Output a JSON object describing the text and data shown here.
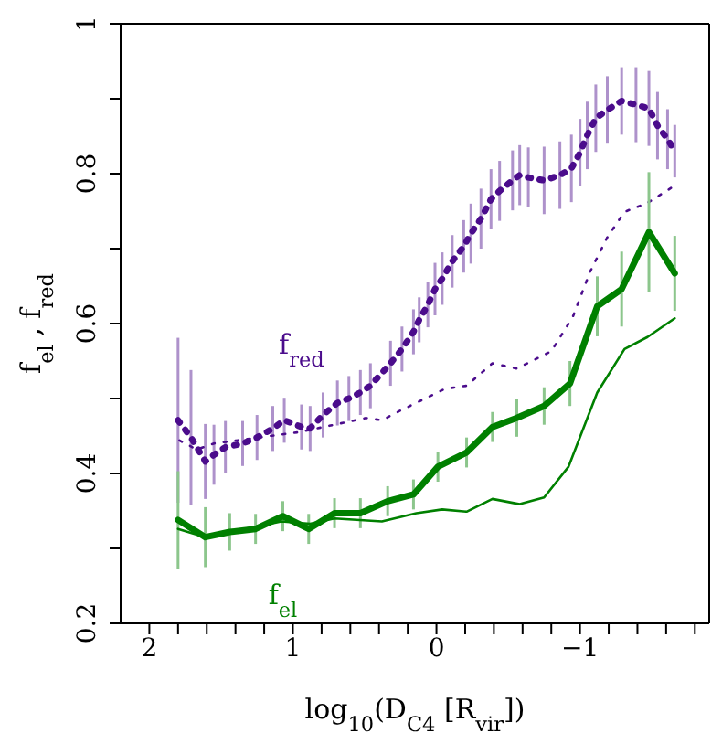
{
  "chart_data": {
    "type": "line",
    "xlabel": "log$_{10}$(D$_{C4}$ [R$_{vir}$])",
    "ylabel": "f$_{el}$ , f$_{red}$",
    "xlim": [
      2.2,
      -1.9
    ],
    "xticks": [
      2,
      {
        "value": 1.8,
        "label": null
      },
      {
        "value": 1.6,
        "label": null
      },
      {
        "value": 1.4,
        "label": null
      },
      {
        "value": 1.2,
        "label": null
      },
      1,
      {
        "value": 0.8,
        "label": null
      },
      {
        "value": 0.6,
        "label": null
      },
      {
        "value": 0.4,
        "label": null
      },
      {
        "value": 0.2,
        "label": null
      },
      0,
      {
        "value": -0.2,
        "label": null
      },
      {
        "value": -0.4,
        "label": null
      },
      {
        "value": -0.6,
        "label": null
      },
      {
        "value": -0.8,
        "label": null
      },
      {
        "value": -1,
        "label": "−1"
      },
      {
        "value": -1.2,
        "label": null
      },
      {
        "value": -1.4,
        "label": null
      },
      {
        "value": -1.6,
        "label": null
      },
      {
        "value": -1.8,
        "label": null
      }
    ],
    "ylim": [
      0.2,
      1
    ],
    "yticks": [
      0.2,
      {
        "value": 0.3,
        "label": null
      },
      0.4,
      {
        "value": 0.5,
        "label": null
      },
      0.6,
      {
        "value": 0.7,
        "label": null
      },
      0.8,
      {
        "value": 0.9,
        "label": null
      },
      1
    ],
    "grid": false,
    "legend": false,
    "series": [
      {
        "name": "f$_{red}$",
        "color": "#4b0c8c",
        "line_style": "dotted",
        "x": [
          1.8,
          1.71,
          1.61,
          1.55,
          1.47,
          1.35,
          1.25,
          1.14,
          1.06,
          0.94,
          0.88,
          0.79,
          0.69,
          0.61,
          0.53,
          0.46,
          0.32,
          0.24,
          0.16,
          0.12,
          0.06,
          0.01,
          -0.04,
          -0.11,
          -0.19,
          -0.24,
          -0.31,
          -0.38,
          -0.44,
          -0.53,
          -0.58,
          -0.64,
          -0.75,
          -0.86,
          -0.94,
          -1.0,
          -1.05,
          -1.11,
          -1.19,
          -1.29,
          -1.39,
          -1.48,
          -1.54,
          -1.61,
          -1.66
        ],
        "values": [
          0.471,
          0.448,
          0.416,
          0.425,
          0.435,
          0.44,
          0.448,
          0.46,
          0.471,
          0.462,
          0.46,
          0.478,
          0.494,
          0.5,
          0.508,
          0.517,
          0.547,
          0.566,
          0.589,
          0.605,
          0.625,
          0.646,
          0.66,
          0.683,
          0.703,
          0.72,
          0.74,
          0.766,
          0.777,
          0.791,
          0.798,
          0.795,
          0.791,
          0.798,
          0.807,
          0.828,
          0.851,
          0.874,
          0.885,
          0.897,
          0.892,
          0.887,
          0.864,
          0.846,
          0.83
        ],
        "errors": [
          0.11,
          0.09,
          0.05,
          0.04,
          0.035,
          0.03,
          0.03,
          0.03,
          0.03,
          0.03,
          0.03,
          0.03,
          0.03,
          0.03,
          0.03,
          0.03,
          0.03,
          0.03,
          0.03,
          0.03,
          0.03,
          0.035,
          0.035,
          0.035,
          0.035,
          0.04,
          0.04,
          0.04,
          0.04,
          0.04,
          0.04,
          0.04,
          0.045,
          0.045,
          0.045,
          0.045,
          0.045,
          0.045,
          0.045,
          0.045,
          0.05,
          0.05,
          0.045,
          0.04,
          0.035
        ]
      },
      {
        "color": "#4b0c8c",
        "line_style": "dotted",
        "x": [
          1.79,
          1.67,
          1.55,
          0.96,
          0.49,
          0.38,
          0.26,
          -0.06,
          -0.21,
          -0.39,
          -0.56,
          -0.8,
          -0.95,
          -1.07,
          -1.19,
          -1.31,
          -1.47,
          -1.66
        ],
        "values": [
          0.444,
          0.432,
          0.44,
          0.455,
          0.474,
          0.471,
          0.483,
          0.513,
          0.517,
          0.547,
          0.54,
          0.563,
          0.609,
          0.669,
          0.715,
          0.749,
          0.761,
          0.784
        ]
      },
      {
        "name": "f$_{el}$",
        "color": "#008000",
        "line_style": "solid",
        "x": [
          1.8,
          1.61,
          1.44,
          1.26,
          1.07,
          0.89,
          0.71,
          0.53,
          0.34,
          0.16,
          -0.01,
          -0.21,
          -0.39,
          -0.56,
          -0.75,
          -0.93,
          -1.12,
          -1.29,
          -1.48,
          -1.66
        ],
        "values": [
          0.338,
          0.315,
          0.322,
          0.326,
          0.343,
          0.326,
          0.347,
          0.347,
          0.363,
          0.372,
          0.409,
          0.428,
          0.462,
          0.474,
          0.49,
          0.52,
          0.623,
          0.646,
          0.722,
          0.667
        ],
        "errors": [
          0.065,
          0.04,
          0.025,
          0.02,
          0.02,
          0.02,
          0.02,
          0.02,
          0.02,
          0.02,
          0.02,
          0.02,
          0.02,
          0.025,
          0.025,
          0.03,
          0.04,
          0.05,
          0.08,
          0.05
        ]
      },
      {
        "color": "#008000",
        "line_style": "solid",
        "x": [
          1.8,
          1.61,
          1.08,
          0.88,
          0.71,
          0.38,
          0.14,
          -0.04,
          -0.21,
          -0.39,
          -0.58,
          -0.75,
          -0.92,
          -1.12,
          -1.31,
          -1.47,
          -1.66
        ],
        "values": [
          0.326,
          0.315,
          0.336,
          0.333,
          0.34,
          0.336,
          0.347,
          0.352,
          0.349,
          0.366,
          0.359,
          0.368,
          0.409,
          0.508,
          0.566,
          0.582,
          0.607
        ]
      }
    ]
  }
}
